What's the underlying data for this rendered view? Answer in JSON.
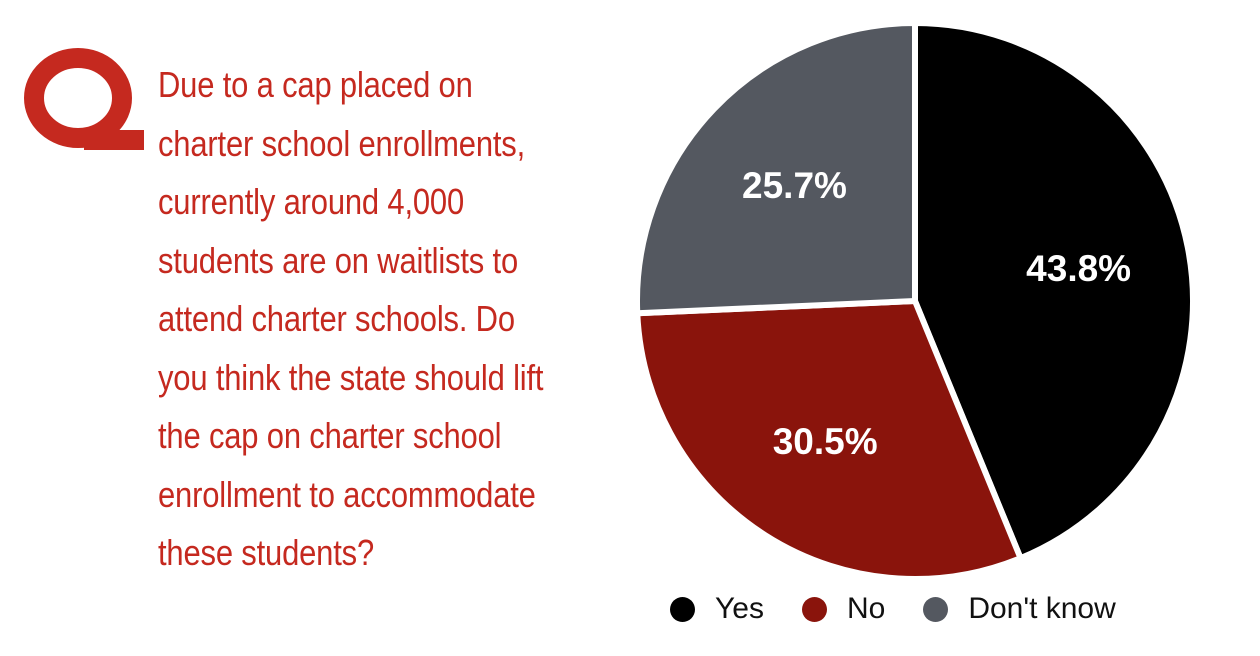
{
  "question": {
    "mark_text": "Q",
    "text": "Due to a cap placed on charter school enrollments, currently around 4,000 students are on waitlists to attend charter schools.  Do you think the state should lift the cap on charter school enrollment to accommodate these students?",
    "color": "#c5291f"
  },
  "chart_data": {
    "type": "pie",
    "title": "",
    "start_angle_deg": 0,
    "direction": "clockwise",
    "labels_inside": true,
    "legend_position": "bottom",
    "slices": [
      {
        "label": "Yes",
        "value": 43.8,
        "display": "43.8%",
        "color": "#000000"
      },
      {
        "label": "No",
        "value": 30.5,
        "display": "30.5%",
        "color": "#8a140c"
      },
      {
        "label": "Don't know",
        "value": 25.7,
        "display": "25.7%",
        "color": "#545860"
      }
    ]
  },
  "legend": [
    {
      "label": "Yes",
      "color": "#000000"
    },
    {
      "label": "No",
      "color": "#8a140c"
    },
    {
      "label": "Don't know",
      "color": "#545860"
    }
  ]
}
